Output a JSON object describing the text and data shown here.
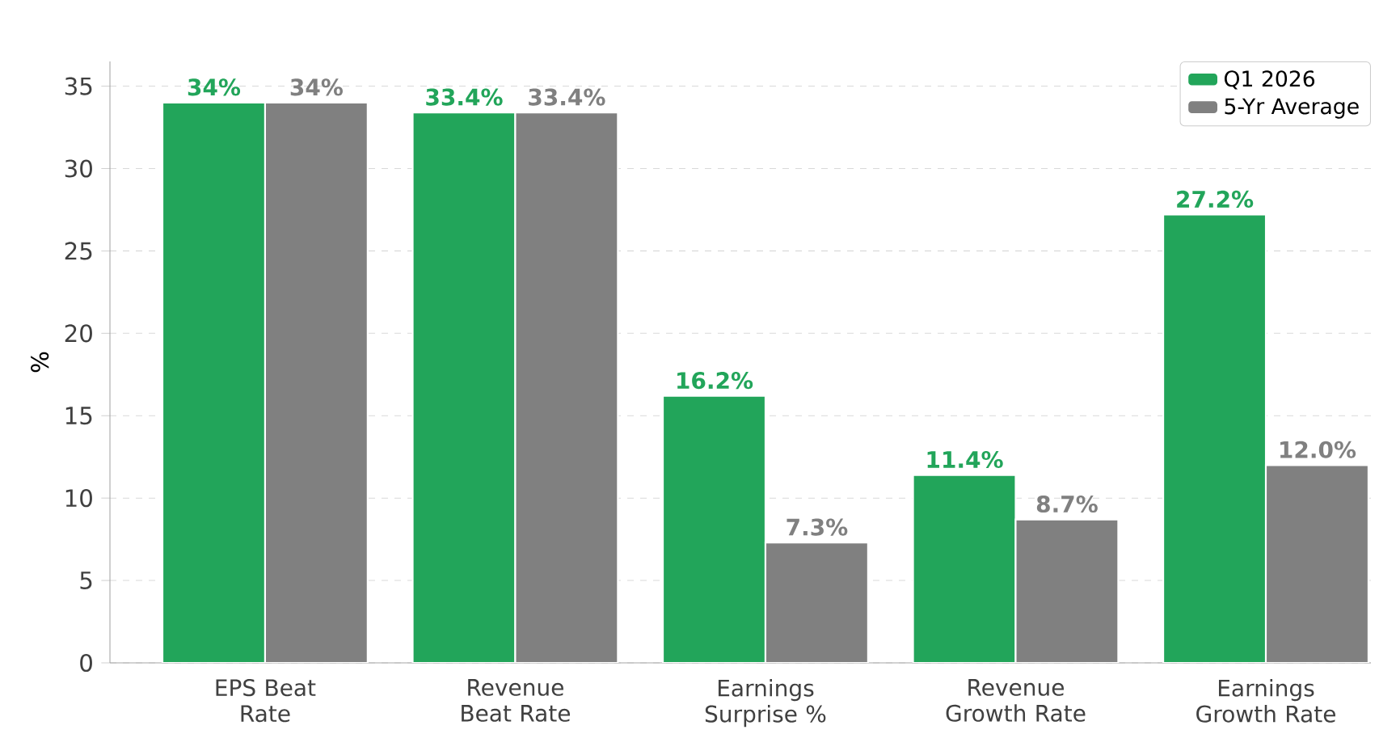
{
  "chart_data": {
    "type": "bar",
    "ylabel": "%",
    "categories": [
      "EPS Beat Rate",
      "Revenue Beat Rate",
      "Earnings Surprise %",
      "Revenue Growth Rate",
      "Earnings Growth Rate"
    ],
    "series": [
      {
        "name": "Q1 2026",
        "color": "#22a55a",
        "values": [
          34,
          33.4,
          16.2,
          11.4,
          27.2
        ],
        "value_labels": [
          "34%",
          "33.4%",
          "16.2%",
          "11.4%",
          "27.2%"
        ]
      },
      {
        "name": "5-Yr Average",
        "color": "#808080",
        "values": [
          34,
          33.4,
          7.3,
          8.7,
          12.0
        ],
        "value_labels": [
          "34%",
          "33.4%",
          "7.3%",
          "8.7%",
          "12.0%"
        ]
      }
    ],
    "ylim": [
      0,
      36.5
    ],
    "yticks": [
      0,
      5,
      10,
      15,
      20,
      25,
      30,
      35
    ],
    "grid": "y",
    "legend": "top right"
  }
}
